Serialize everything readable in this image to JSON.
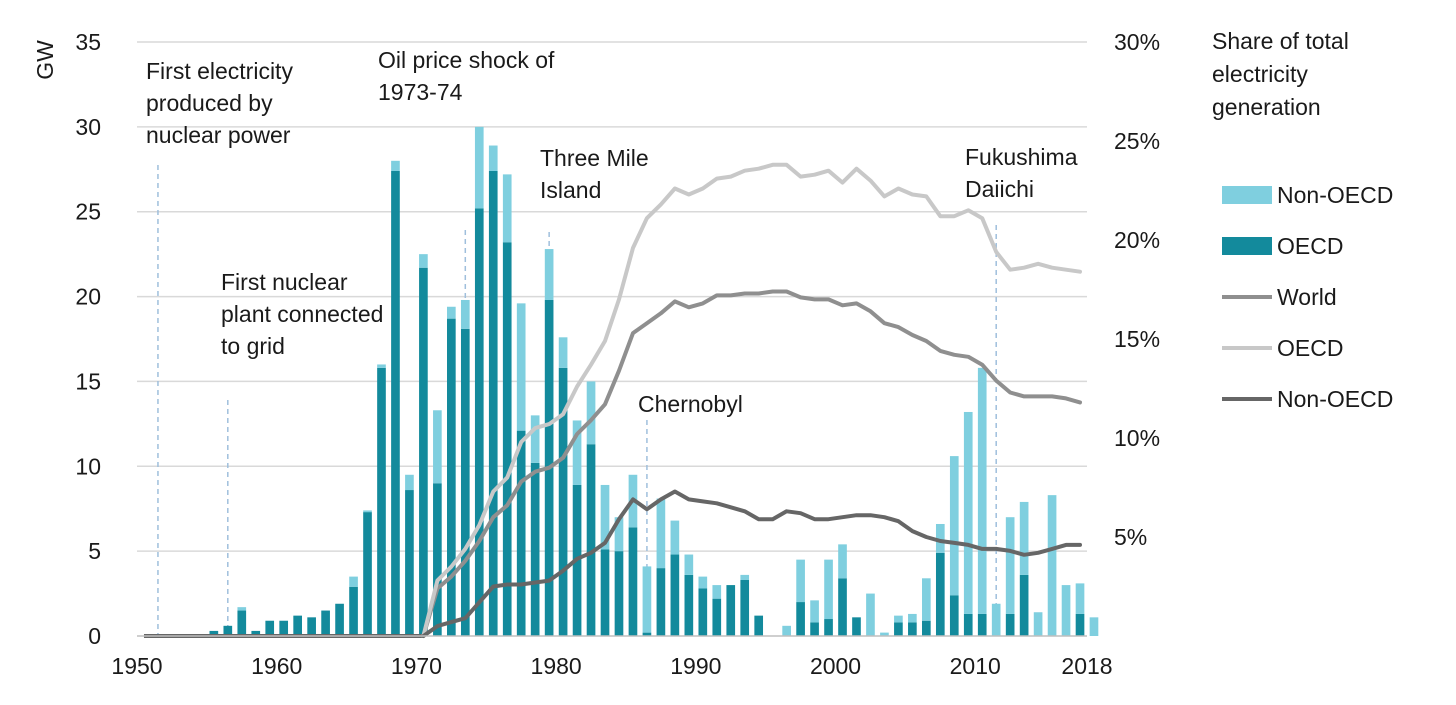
{
  "chart_data": {
    "type": "bar",
    "stacked": true,
    "y_left_label": "GW",
    "y_right_label": [
      "Share of total",
      "electricity",
      "generation"
    ],
    "x_range": [
      1950,
      2018
    ],
    "x_ticks": [
      "1950",
      "1960",
      "1970",
      "1980",
      "1990",
      "2000",
      "2010",
      "2018"
    ],
    "y_left_range": [
      0,
      35
    ],
    "y_left_ticks": [
      "0",
      "5",
      "10",
      "15",
      "20",
      "25",
      "30",
      "35"
    ],
    "y_right_range": [
      0,
      30
    ],
    "y_right_ticks": [
      "5%",
      "10%",
      "15%",
      "20%",
      "25%",
      "30%"
    ],
    "grid": true,
    "colors": {
      "non_oecd_bar": "#7fcfdf",
      "oecd_bar": "#138a9c",
      "world_line": "#8f8f8f",
      "oecd_line": "#c8c8c8",
      "non_oecd_line": "#666666",
      "grid": "#d9d9d9",
      "annotation_line": "#9fbfdc"
    },
    "bar_series": [
      {
        "name": "Non-OECD",
        "values": [
          0,
          0,
          0,
          0,
          0,
          0,
          0,
          0.2,
          0,
          0,
          0,
          0,
          0,
          0,
          0,
          0.6,
          0.1,
          0.2,
          0.6,
          0.9,
          0.8,
          4.3,
          0.7,
          1.7,
          4.8,
          1.5,
          4.0,
          7.5,
          2.8,
          3.0,
          1.8,
          3.8,
          3.7,
          3.8,
          2.0,
          3.1,
          3.9,
          4.1,
          2.0,
          1.2,
          0.7,
          0.8,
          0,
          0.3,
          0,
          0,
          0.6,
          2.5,
          1.3,
          3.5,
          2.0,
          0,
          2.5,
          0.2,
          0.4,
          0.5,
          2.5,
          1.7,
          8.2,
          11.9,
          14.5,
          1.9,
          5.7,
          4.3,
          1.4,
          8.3,
          3.0,
          1.8,
          1.1
        ]
      },
      {
        "name": "OECD",
        "values": [
          0,
          0,
          0,
          0,
          0,
          0.3,
          0.6,
          1.5,
          0.3,
          0.9,
          0.9,
          1.2,
          1.1,
          1.5,
          1.9,
          2.9,
          7.3,
          15.8,
          27.4,
          8.6,
          21.7,
          9.0,
          18.7,
          18.1,
          25.2,
          27.4,
          23.2,
          12.1,
          10.2,
          19.8,
          15.8,
          8.9,
          11.3,
          5.1,
          5.0,
          6.4,
          0.2,
          4.0,
          4.8,
          3.6,
          2.8,
          2.2,
          3.0,
          3.3,
          1.2,
          0,
          0,
          2.0,
          0.8,
          1.0,
          3.4,
          1.1,
          0,
          0,
          0.8,
          0.8,
          0.9,
          4.9,
          2.4,
          1.3,
          1.3,
          0,
          1.3,
          3.6,
          0,
          0,
          0,
          1.3,
          0
        ]
      }
    ],
    "line_series": [
      {
        "name": "World",
        "x": [
          1970,
          1971,
          1972,
          1973,
          1974,
          1975,
          1976,
          1977,
          1978,
          1979,
          1980,
          1981,
          1982,
          1983,
          1984,
          1985,
          1986,
          1987,
          1988,
          1989,
          1990,
          1991,
          1992,
          1993,
          1994,
          1995,
          1996,
          1997,
          1998,
          1999,
          2000,
          2001,
          2002,
          2003,
          2004,
          2005,
          2006,
          2007,
          2008,
          2009,
          2010,
          2011,
          2012,
          2013,
          2014,
          2015,
          2016,
          2017
        ],
        "values": [
          0,
          2.4,
          3.0,
          3.8,
          4.8,
          6.0,
          6.6,
          7.8,
          8.3,
          8.5,
          9.0,
          10.2,
          10.9,
          11.7,
          13.4,
          15.3,
          15.8,
          16.3,
          16.9,
          16.6,
          16.8,
          17.2,
          17.2,
          17.3,
          17.3,
          17.4,
          17.4,
          17.1,
          17.0,
          17.0,
          16.7,
          16.8,
          16.4,
          15.8,
          15.6,
          15.2,
          14.9,
          14.4,
          14.2,
          14.1,
          13.7,
          12.9,
          12.3,
          12.1,
          12.1,
          12.1,
          12.0,
          11.8
        ]
      },
      {
        "name": "OECD",
        "x": [
          1970,
          1971,
          1972,
          1973,
          1974,
          1975,
          1976,
          1977,
          1978,
          1979,
          1980,
          1981,
          1982,
          1983,
          1984,
          1985,
          1986,
          1987,
          1988,
          1989,
          1990,
          1991,
          1992,
          1993,
          1994,
          1995,
          1996,
          1997,
          1998,
          1999,
          2000,
          2001,
          2002,
          2003,
          2004,
          2005,
          2006,
          2007,
          2008,
          2009,
          2010,
          2011,
          2012,
          2013,
          2014,
          2015,
          2016,
          2017
        ],
        "values": [
          0,
          2.8,
          3.5,
          4.4,
          5.6,
          7.3,
          8.0,
          9.8,
          10.5,
          10.7,
          11.2,
          12.6,
          13.7,
          14.9,
          17.0,
          19.6,
          21.1,
          21.8,
          22.6,
          22.3,
          22.6,
          23.1,
          23.2,
          23.5,
          23.6,
          23.8,
          23.8,
          23.2,
          23.3,
          23.5,
          22.9,
          23.6,
          23.0,
          22.2,
          22.6,
          22.3,
          22.2,
          21.2,
          21.2,
          21.5,
          21.1,
          19.4,
          18.5,
          18.6,
          18.8,
          18.6,
          18.5,
          18.4
        ]
      },
      {
        "name": "Non-OECD",
        "x": [
          1970,
          1971,
          1972,
          1973,
          1974,
          1975,
          1976,
          1977,
          1978,
          1979,
          1980,
          1981,
          1982,
          1983,
          1984,
          1985,
          1986,
          1987,
          1988,
          1989,
          1990,
          1991,
          1992,
          1993,
          1994,
          1995,
          1996,
          1997,
          1998,
          1999,
          2000,
          2001,
          2002,
          2003,
          2004,
          2005,
          2006,
          2007,
          2008,
          2009,
          2010,
          2011,
          2012,
          2013,
          2014,
          2015,
          2016,
          2017
        ],
        "values": [
          0,
          0.5,
          0.7,
          0.9,
          1.7,
          2.5,
          2.6,
          2.6,
          2.7,
          2.8,
          3.3,
          3.9,
          4.2,
          4.7,
          5.9,
          6.9,
          6.4,
          6.9,
          7.3,
          6.9,
          6.8,
          6.7,
          6.5,
          6.3,
          5.9,
          5.9,
          6.3,
          6.2,
          5.9,
          5.9,
          6.0,
          6.1,
          6.1,
          6.0,
          5.8,
          5.3,
          5.0,
          4.8,
          4.7,
          4.6,
          4.4,
          4.4,
          4.3,
          4.1,
          4.2,
          4.4,
          4.6,
          4.6
        ]
      }
    ],
    "legend": {
      "placement": "right",
      "items": [
        {
          "label": "Non-OECD",
          "kind": "bar"
        },
        {
          "label": "OECD",
          "kind": "bar"
        },
        {
          "label": "World",
          "kind": "line"
        },
        {
          "label": "OECD",
          "kind": "line"
        },
        {
          "label": "Non-OECD",
          "kind": "line"
        }
      ]
    },
    "annotations": [
      {
        "year": 1951,
        "lines": [
          "First electricity",
          "produced by",
          "nuclear power"
        ]
      },
      {
        "year": 1956,
        "lines": [
          "First nuclear",
          "plant connected",
          "to grid"
        ]
      },
      {
        "year": 1973,
        "lines": [
          "Oil price shock of",
          "1973-74"
        ]
      },
      {
        "year": 1979,
        "lines": [
          "Three Mile",
          "Island"
        ]
      },
      {
        "year": 1986,
        "lines": [
          "Chernobyl"
        ]
      },
      {
        "year": 2011,
        "lines": [
          "Fukushima",
          "Daiichi"
        ]
      }
    ]
  }
}
